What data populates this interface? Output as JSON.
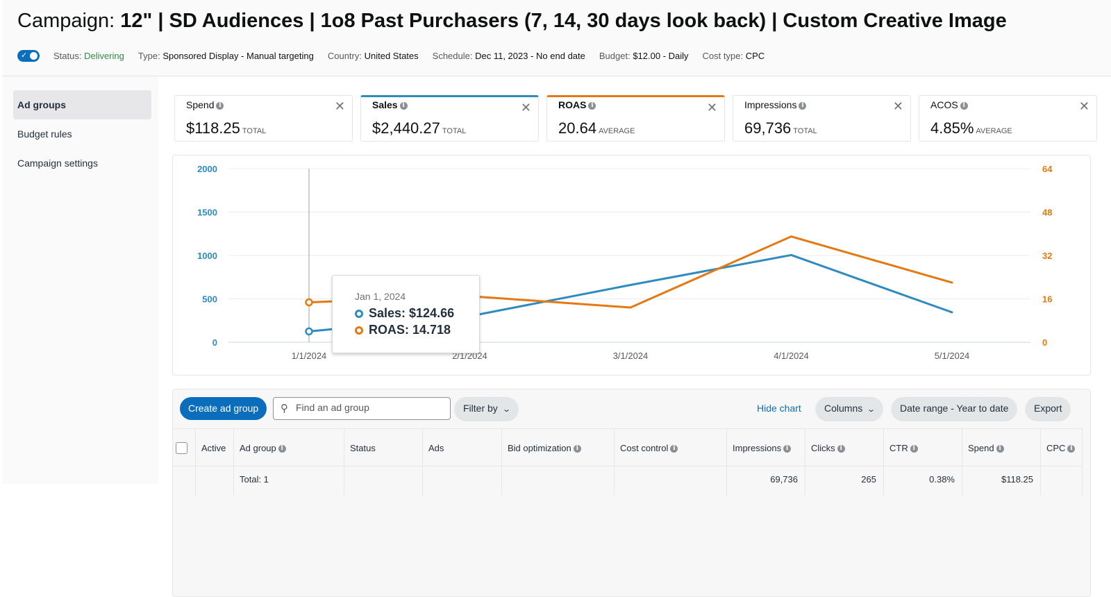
{
  "header": {
    "title_label": "Campaign:",
    "title_name": "12\" | SD Audiences | 1o8 Past Purchasers (7, 14, 30 days look back) | Custom Creative Image",
    "toggle_on": true,
    "meta": [
      {
        "label": "Status:",
        "value": "Delivering"
      },
      {
        "label": "Type:",
        "value": "Sponsored Display - Manual targeting"
      },
      {
        "label": "Country:",
        "value": "United States"
      },
      {
        "label": "Schedule:",
        "value": "Dec 11, 2023 - No end date"
      },
      {
        "label": "Budget:",
        "value": "$12.00 - Daily"
      },
      {
        "label": "Cost type:",
        "value": "CPC"
      }
    ]
  },
  "sidebar": {
    "items": [
      {
        "label": "Ad groups",
        "active": true
      },
      {
        "label": "Budget rules",
        "active": false
      },
      {
        "label": "Campaign settings",
        "active": false
      }
    ]
  },
  "metrics": [
    {
      "name": "Spend",
      "value": "$118.25",
      "suffix": "TOTAL",
      "selected": ""
    },
    {
      "name": "Sales",
      "value": "$2,440.27",
      "suffix": "TOTAL",
      "selected": "blue"
    },
    {
      "name": "ROAS",
      "value": "20.64",
      "suffix": "AVERAGE",
      "selected": "orange"
    },
    {
      "name": "Impressions",
      "value": "69,736",
      "suffix": "TOTAL",
      "selected": ""
    },
    {
      "name": "ACOS",
      "value": "4.85%",
      "suffix": "AVERAGE",
      "selected": ""
    }
  ],
  "colors": {
    "sales": "#2e8bc0",
    "roas": "#e47911",
    "primary": "#0a6ebd",
    "status_green": "#2f8a45"
  },
  "chart_data": {
    "type": "line",
    "title": "",
    "x": [
      "1/1/2024",
      "2/1/2024",
      "3/1/2024",
      "4/1/2024",
      "5/1/2024"
    ],
    "series": [
      {
        "name": "Sales",
        "axis": "left",
        "values": [
          124.66,
          300,
          660,
          1005,
          345
        ]
      },
      {
        "name": "ROAS",
        "axis": "right",
        "values": [
          14.718,
          17.0,
          12.8,
          39.0,
          22.0
        ]
      }
    ],
    "y_left": {
      "ticks": [
        0,
        500,
        1000,
        1500,
        2000
      ],
      "range": [
        0,
        2000
      ]
    },
    "y_right": {
      "ticks": [
        0,
        16,
        32,
        48,
        64
      ],
      "range": [
        0,
        64
      ]
    },
    "grid": true,
    "hover_index": 0,
    "tooltip": {
      "date": "Jan 1, 2024",
      "rows": [
        {
          "label": "Sales: $124.66",
          "series": "Sales"
        },
        {
          "label": "ROAS: 14.718",
          "series": "ROAS"
        }
      ]
    }
  },
  "table": {
    "toolbar": {
      "create_label": "Create ad group",
      "search_placeholder": "Find an ad group",
      "search_value": "",
      "filter_label": "Filter by",
      "hide_chart_label": "Hide chart",
      "columns_label": "Columns",
      "date_range_label": "Date range - Year to date",
      "export_label": "Export"
    },
    "columns": [
      {
        "label": "Active",
        "info": false
      },
      {
        "label": "Ad group",
        "info": true
      },
      {
        "label": "Status",
        "info": false
      },
      {
        "label": "Ads",
        "info": false
      },
      {
        "label": "Bid optimization",
        "info": true
      },
      {
        "label": "Cost control",
        "info": true
      },
      {
        "label": "Impressions",
        "info": true
      },
      {
        "label": "Clicks",
        "info": true
      },
      {
        "label": "CTR",
        "info": true
      },
      {
        "label": "Spend",
        "info": true
      },
      {
        "label": "CPC",
        "info": true
      }
    ],
    "total_row": {
      "ad_group": "Total: 1",
      "impressions": "69,736",
      "clicks": "265",
      "ctr": "0.38%",
      "spend": "$118.25"
    }
  }
}
